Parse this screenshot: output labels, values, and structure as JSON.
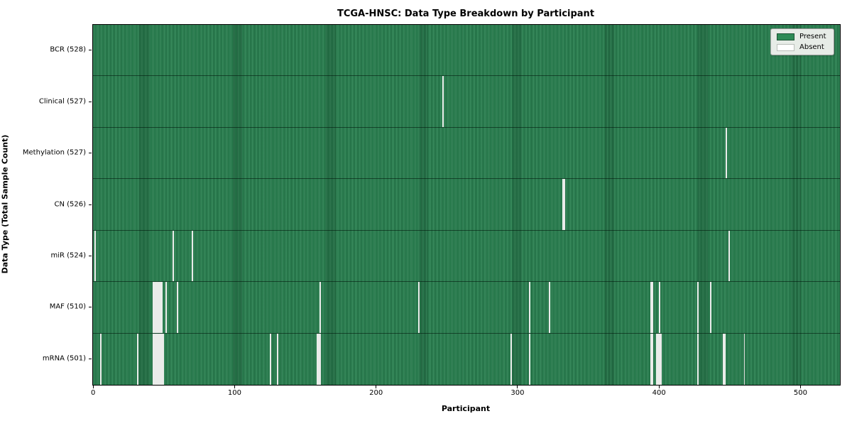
{
  "title": "TCGA-HNSC: Data Type Breakdown by Participant",
  "legend": {
    "present_label": "Present",
    "absent_label": "Absent"
  },
  "colors": {
    "present": "#2e8b57",
    "absent": "#f6f6f6",
    "legend_bg": "#e7ece7"
  },
  "chart_data": {
    "type": "heatmap",
    "title": "TCGA-HNSC: Data Type Breakdown by Participant",
    "xlabel": "Participant",
    "ylabel": "Data Type (Total Sample Count)",
    "x_range": [
      0,
      528
    ],
    "x_ticks": [
      "0",
      "100",
      "200",
      "300",
      "400",
      "500"
    ],
    "x_tick_values": [
      0,
      100,
      200,
      300,
      400,
      500
    ],
    "grid": false,
    "legend_position": "upper right",
    "legend_entries": [
      "Present",
      "Absent"
    ],
    "participants_total": 528,
    "rows": [
      {
        "label": "BCR (528)",
        "total": 528,
        "absent": []
      },
      {
        "label": "Clinical (527)",
        "total": 527,
        "absent": [
          247
        ]
      },
      {
        "label": "Methylation (527)",
        "total": 527,
        "absent": [
          447
        ]
      },
      {
        "label": "CN (526)",
        "total": 526,
        "absent": [
          332,
          333
        ]
      },
      {
        "label": "miR (524)",
        "total": 524,
        "absent": [
          1,
          56,
          70,
          449
        ]
      },
      {
        "label": "MAF (510)",
        "total": 510,
        "absent": [
          42,
          43,
          44,
          45,
          46,
          47,
          48,
          51,
          59,
          160,
          230,
          308,
          322,
          394,
          395,
          400,
          427,
          436
        ]
      },
      {
        "label": "mRNA (501)",
        "total": 501,
        "absent": [
          5,
          31,
          42,
          43,
          44,
          45,
          46,
          47,
          48,
          49,
          125,
          130,
          158,
          159,
          160,
          295,
          308,
          394,
          395,
          398,
          399,
          400,
          401,
          427,
          445,
          446,
          460
        ]
      }
    ]
  }
}
